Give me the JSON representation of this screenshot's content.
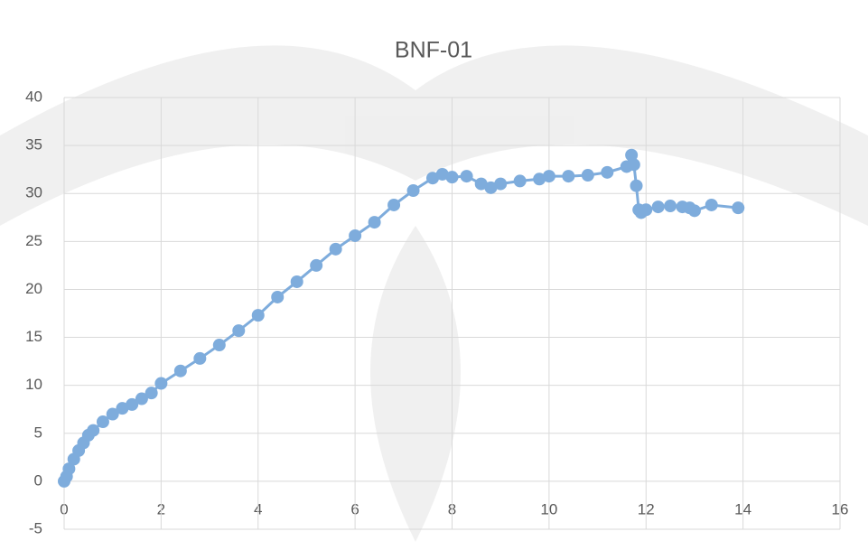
{
  "chart_data": {
    "type": "scatter",
    "title": "BNF-01",
    "x": [
      0,
      0.05,
      0.1,
      0.2,
      0.3,
      0.4,
      0.5,
      0.6,
      0.8,
      1.0,
      1.2,
      1.4,
      1.6,
      1.8,
      2.0,
      2.4,
      2.8,
      3.2,
      3.6,
      4.0,
      4.4,
      4.8,
      5.2,
      5.6,
      6.0,
      6.4,
      6.8,
      7.2,
      7.6,
      7.8,
      8.0,
      8.3,
      8.6,
      8.8,
      9.0,
      9.4,
      9.8,
      10.0,
      10.4,
      10.8,
      11.2,
      11.6,
      11.7,
      11.75,
      11.8,
      11.85,
      11.9,
      12.0,
      12.25,
      12.5,
      12.75,
      12.9,
      13.0,
      13.35,
      13.9
    ],
    "values": [
      0,
      0.5,
      1.3,
      2.3,
      3.2,
      4.0,
      4.8,
      5.3,
      6.2,
      7.0,
      7.6,
      8.0,
      8.6,
      9.2,
      10.2,
      11.5,
      12.8,
      14.2,
      15.7,
      17.3,
      19.2,
      20.8,
      22.5,
      24.2,
      25.6,
      27.0,
      28.8,
      30.3,
      31.6,
      32.0,
      31.7,
      31.8,
      31.0,
      30.6,
      31.0,
      31.3,
      31.5,
      31.8,
      31.8,
      31.9,
      32.2,
      32.8,
      34.0,
      33.0,
      30.8,
      28.3,
      28.0,
      28.3,
      28.6,
      28.7,
      28.6,
      28.5,
      28.2,
      28.8,
      28.5
    ],
    "color": "#7eacdc",
    "xlim": [
      0,
      16
    ],
    "xticks": [
      0,
      2,
      4,
      6,
      8,
      10,
      12,
      14,
      16
    ],
    "ylim": [
      -5,
      40
    ],
    "yticks": [
      -5,
      0,
      5,
      10,
      15,
      20,
      25,
      30,
      35,
      40
    ],
    "grid": true
  }
}
